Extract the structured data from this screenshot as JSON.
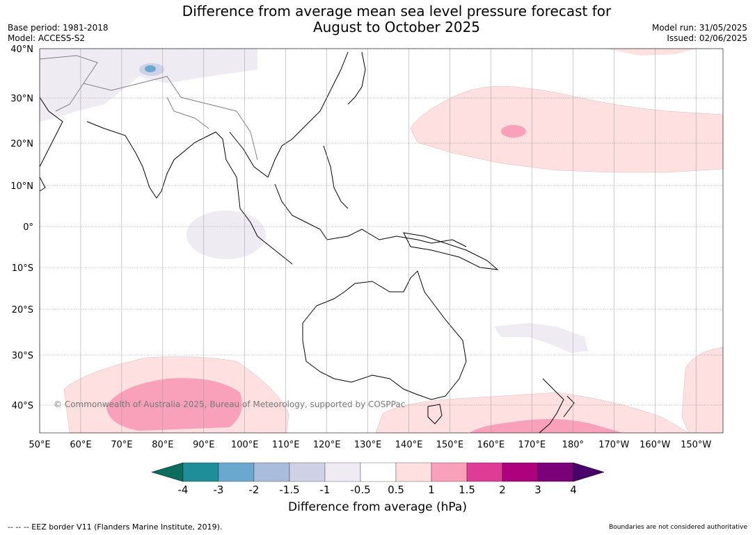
{
  "header": {
    "title_line1": "Difference from average mean sea level pressure forecast for",
    "title_line2": "August to October 2025",
    "base_period": "Base period: 1981-2018",
    "model": "Model: ACCESS-S2",
    "model_run": "Model run: 31/05/2025",
    "issued": "Issued: 02/06/2025"
  },
  "map": {
    "lon_ticks": [
      "50°E",
      "60°E",
      "70°E",
      "80°E",
      "90°E",
      "100°E",
      "110°E",
      "120°E",
      "130°E",
      "140°E",
      "150°E",
      "160°E",
      "170°E",
      "180°",
      "170°W",
      "160°W",
      "150°W"
    ],
    "lat_ticks": [
      "40°N",
      "30°N",
      "20°N",
      "10°N",
      "0°",
      "10°S",
      "20°S",
      "30°S",
      "40°S"
    ],
    "copyright": "© Commonwealth of Australia 2025, Bureau of Meteorology, supported by COSPPac",
    "colors": {
      "land_outline": "#000000",
      "border": "#808080",
      "grid": "#888888"
    }
  },
  "colorbar": {
    "title": "Difference from average (hPa)",
    "labels": [
      "-4",
      "-3",
      "-2",
      "-1.5",
      "-1",
      "-0.5",
      "0.5",
      "1",
      "1.5",
      "2",
      "3",
      "4"
    ],
    "colors": [
      "#0b6d5e",
      "#1e8f98",
      "#6aa8d0",
      "#a9bcdb",
      "#cfd1e6",
      "#efebf2",
      "#ffffff",
      "#fde0df",
      "#f9a1ba",
      "#df3c96",
      "#ad017e",
      "#7a0177",
      "#49006a"
    ]
  },
  "footer": {
    "eez_legend": "--  --  -- EEZ border V11 (Flanders Marine Institute, 2019).",
    "disclaimer": "Boundaries are not considered authoritative"
  }
}
